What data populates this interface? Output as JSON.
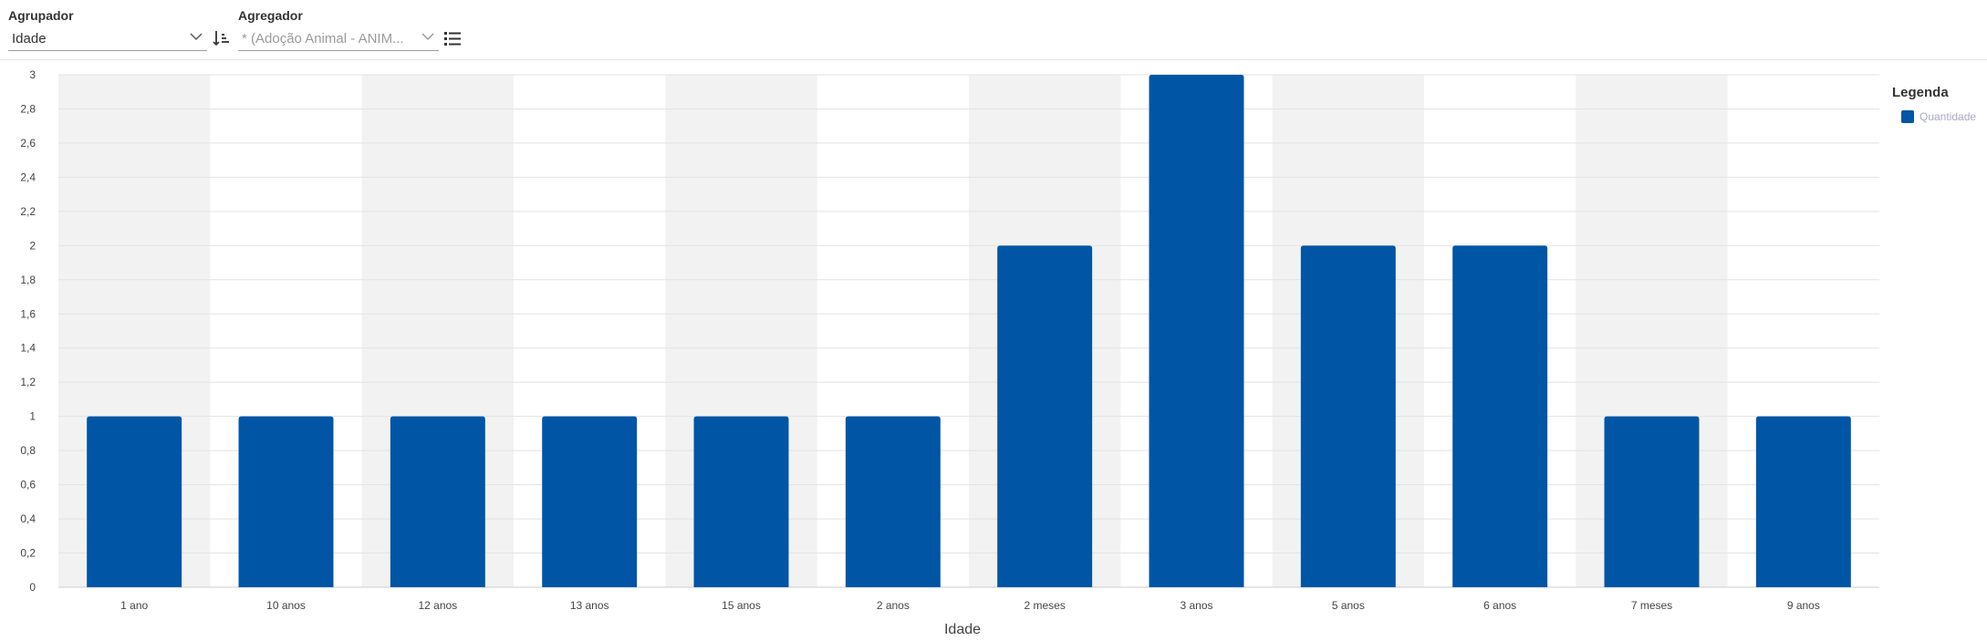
{
  "toolbar": {
    "grouper": {
      "label": "Agrupador",
      "value": "Idade",
      "chevron_icon": "chevron-down-icon",
      "sort_icon": "sort-ascending-icon"
    },
    "aggregator": {
      "label": "Agregador",
      "value": "* (Adoção Animal - ANIM...",
      "chevron_icon": "chevron-down-icon",
      "list_icon": "ordered-list-icon"
    }
  },
  "legend": {
    "title": "Legenda",
    "items": [
      {
        "label": "Quantidade",
        "color": "#0055a5"
      }
    ]
  },
  "colors": {
    "bar": "#0055a5",
    "band": "#f2f2f2",
    "grid": "#e3e3e3",
    "axis": "#cccccc"
  },
  "chart_data": {
    "type": "bar",
    "categories": [
      "1 ano",
      "10 anos",
      "12 anos",
      "13 anos",
      "15 anos",
      "2 anos",
      "2 meses",
      "3 anos",
      "5 anos",
      "6 anos",
      "7 meses",
      "9 anos"
    ],
    "series": [
      {
        "name": "Quantidade",
        "values": [
          1,
          1,
          1,
          1,
          1,
          1,
          2,
          3,
          2,
          2,
          1,
          1
        ]
      }
    ],
    "xlabel": "Idade",
    "ylabel": "",
    "ylim": [
      0,
      3
    ],
    "yticks": [
      "0",
      "0,2",
      "0,4",
      "0,6",
      "0,8",
      "1",
      "1,2",
      "1,4",
      "1,6",
      "1,8",
      "2",
      "2,2",
      "2,4",
      "2,6",
      "2,8",
      "3"
    ],
    "grid": true,
    "alternating_bands": true,
    "legend_position": "right"
  }
}
